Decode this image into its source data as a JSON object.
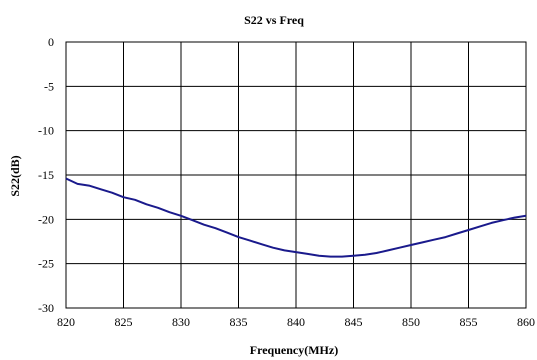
{
  "chart_data": {
    "type": "line",
    "title": "S22 vs Freq",
    "xlabel": "Frequency(MHz)",
    "ylabel": "S22(dB)",
    "xlim": [
      820,
      860
    ],
    "ylim": [
      -30,
      0
    ],
    "xticks": [
      820,
      825,
      830,
      835,
      840,
      845,
      850,
      855,
      860
    ],
    "yticks": [
      0,
      -5,
      -10,
      -15,
      -20,
      -25,
      -30
    ],
    "xtick_labels": [
      "820",
      "825",
      "830",
      "835",
      "840",
      "845",
      "850",
      "855",
      "860"
    ],
    "ytick_labels": [
      "0",
      "-5",
      "-10",
      "-15",
      "-20",
      "-25",
      "-30"
    ],
    "grid": true,
    "legend": "none",
    "line_color": "#1a1a8c",
    "series": [
      {
        "x": [
          820,
          821,
          822,
          823,
          824,
          825,
          826,
          827,
          828,
          829,
          830,
          831,
          832,
          833,
          834,
          835,
          836,
          837,
          838,
          839,
          840,
          841,
          842,
          843,
          844,
          845,
          846,
          847,
          848,
          849,
          850,
          851,
          852,
          853,
          854,
          855,
          856,
          857,
          858,
          859,
          860
        ],
        "y": [
          -15.4,
          -16.0,
          -16.2,
          -16.6,
          -17.0,
          -17.5,
          -17.8,
          -18.3,
          -18.7,
          -19.2,
          -19.6,
          -20.1,
          -20.6,
          -21.0,
          -21.5,
          -22.0,
          -22.4,
          -22.8,
          -23.2,
          -23.5,
          -23.7,
          -23.9,
          -24.1,
          -24.2,
          -24.2,
          -24.1,
          -24.0,
          -23.8,
          -23.5,
          -23.2,
          -22.9,
          -22.6,
          -22.3,
          -22.0,
          -21.6,
          -21.2,
          -20.8,
          -20.4,
          -20.1,
          -19.8,
          -19.6
        ]
      }
    ]
  }
}
